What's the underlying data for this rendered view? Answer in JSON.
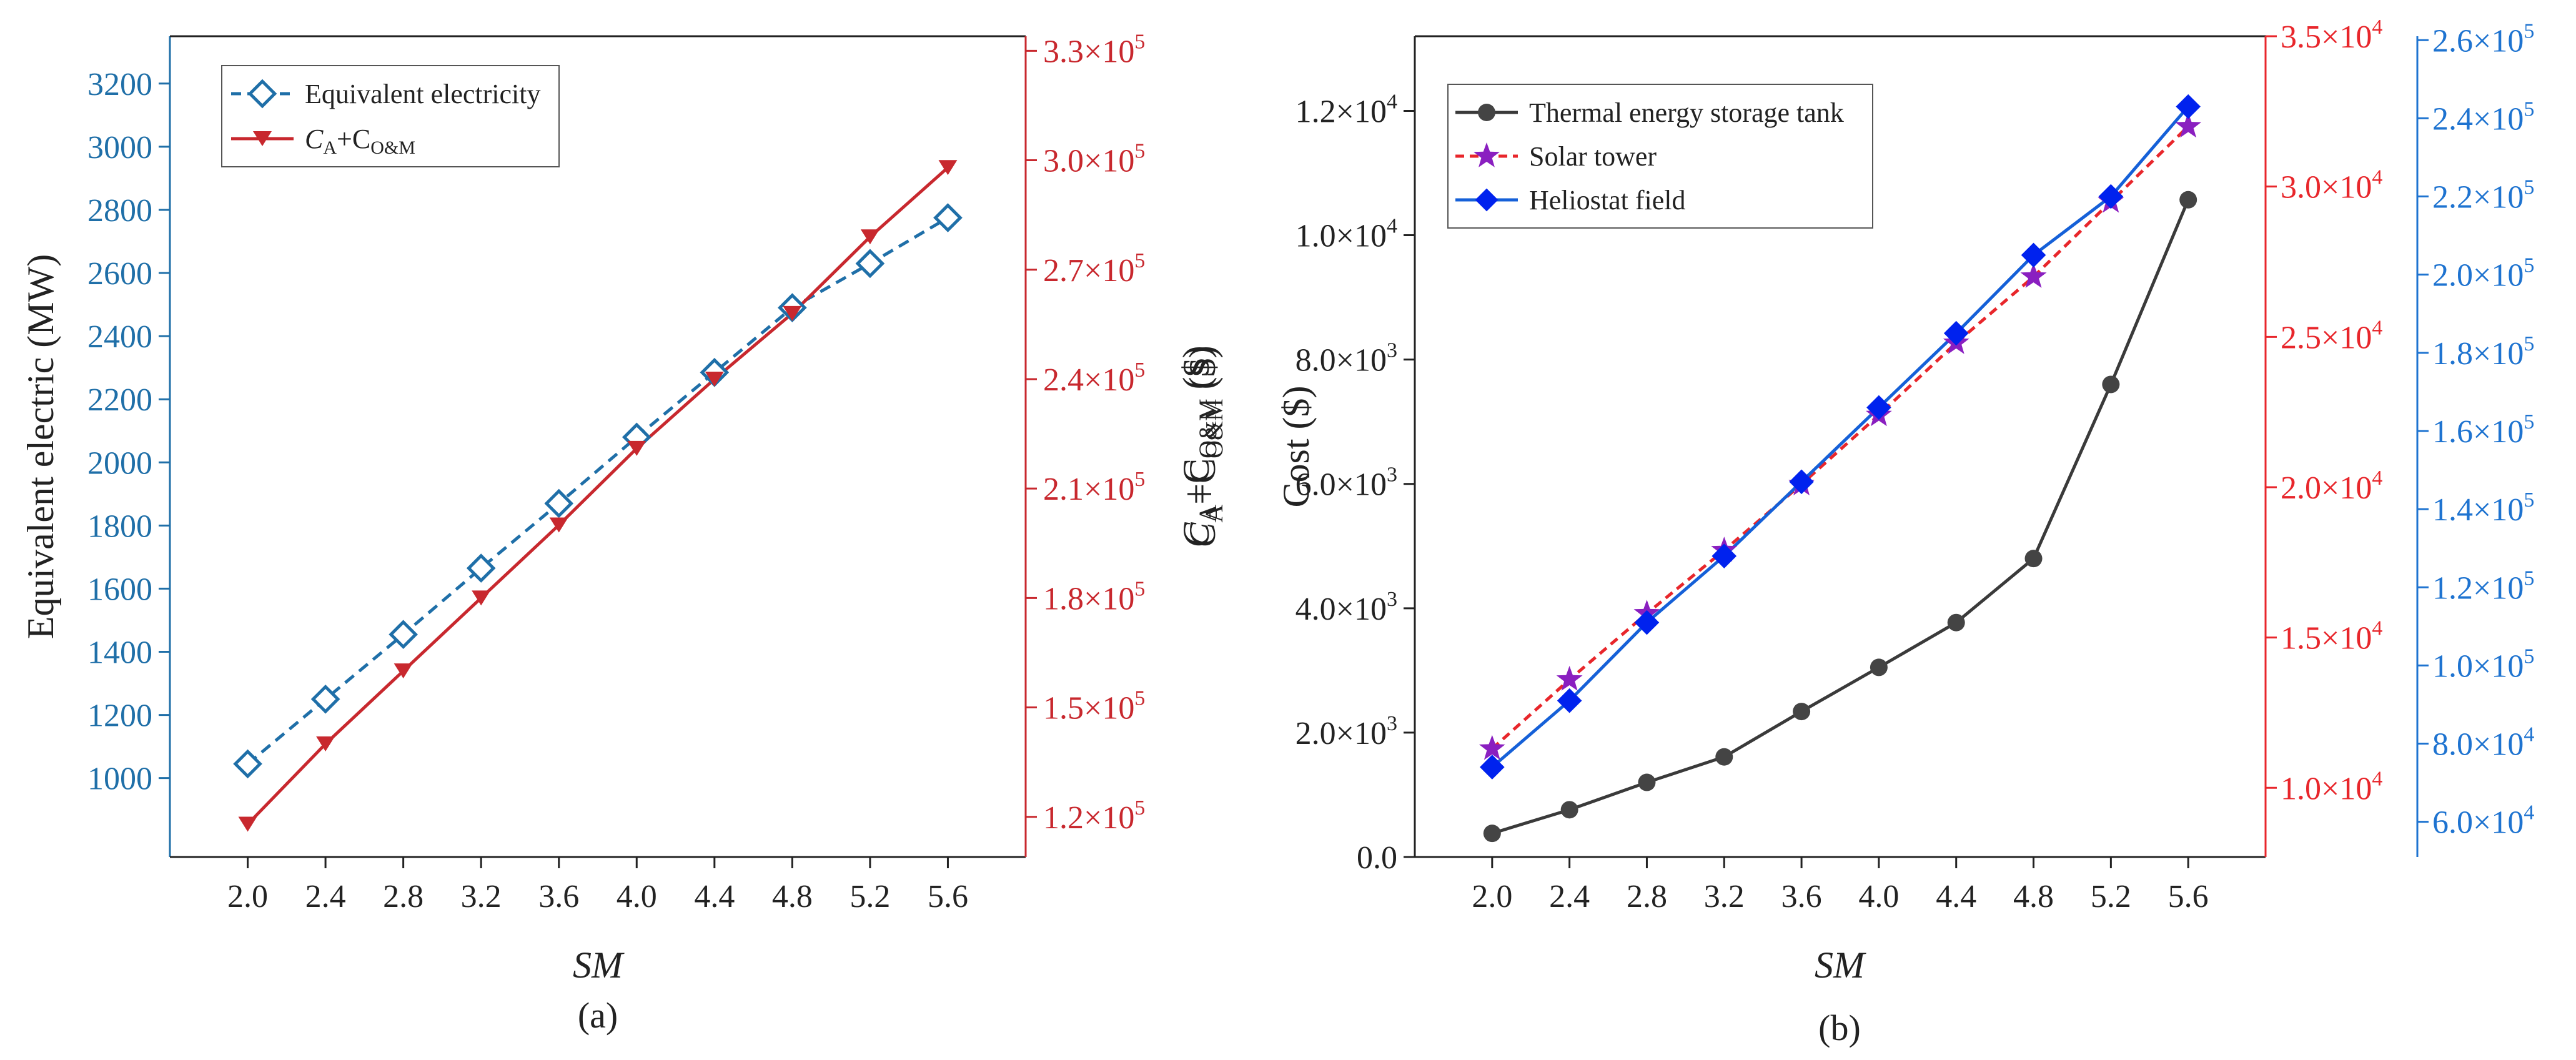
{
  "colors": {
    "blue_axis": "#1f6fa8",
    "red_axis": "#c8282e",
    "red_axis_b": "#e8262b",
    "blue_axis_b": "#1e73d0",
    "black": "#222222",
    "grey_series": "#3a3a3a",
    "purple_series": "#8a1fc0",
    "red_dash_series": "#e8262b",
    "blue_series": "#1560d8",
    "diamond_fill": "#0022ee"
  },
  "chart_data": [
    {
      "id": "a",
      "type": "line",
      "caption": "(a)",
      "xlabel": "SM",
      "x": [
        2.0,
        2.4,
        2.8,
        3.2,
        3.6,
        4.0,
        4.4,
        4.8,
        5.2,
        5.6
      ],
      "x_tick_labels": [
        "2.0",
        "2.4",
        "2.8",
        "3.2",
        "3.6",
        "4.0",
        "4.4",
        "4.8",
        "5.2",
        "5.6"
      ],
      "xlim": [
        1.6,
        6.0
      ],
      "left_axis": {
        "label": "Equivalent electric (MW)",
        "lim": [
          750,
          3350
        ],
        "ticks": [
          1000,
          1200,
          1400,
          1600,
          1800,
          2000,
          2200,
          2400,
          2600,
          2800,
          3000,
          3200
        ],
        "tick_labels": [
          "1000",
          "1200",
          "1400",
          "1600",
          "1800",
          "2000",
          "2200",
          "2400",
          "2600",
          "2800",
          "3000",
          "3200"
        ]
      },
      "right_axis": {
        "label_main": "C",
        "label_sub_a": "A",
        "label_plus": "+C",
        "label_sub_b": "O&M",
        "label_tail": " ($)",
        "lim": [
          109000,
          334000
        ],
        "ticks": [
          120000,
          150000,
          180000,
          210000,
          240000,
          270000,
          300000,
          330000
        ],
        "tick_mantissa": [
          "1.2",
          "1.5",
          "1.8",
          "2.1",
          "2.4",
          "2.7",
          "3.0",
          "3.3"
        ],
        "tick_times": "×10",
        "tick_exp": "5"
      },
      "series": [
        {
          "name": "Equivalent electricity",
          "axis": "left",
          "marker": "open-diamond",
          "line": "dashed",
          "values": [
            1045,
            1250,
            1455,
            1665,
            1870,
            2080,
            2285,
            2490,
            2630,
            2775
          ]
        },
        {
          "name_main": "C",
          "name_sub_a": "A",
          "name_plus": "+C",
          "name_sub_b": "O&M",
          "axis": "right",
          "marker": "down-triangle",
          "line": "solid",
          "values": [
            118000,
            140000,
            160000,
            180000,
            200000,
            221000,
            240000,
            258000,
            279000,
            298000
          ]
        }
      ]
    },
    {
      "id": "b",
      "type": "line",
      "caption": "(b)",
      "xlabel": "SM",
      "x": [
        2.0,
        2.4,
        2.8,
        3.2,
        3.6,
        4.0,
        4.4,
        4.8,
        5.2,
        5.6
      ],
      "x_tick_labels": [
        "2.0",
        "2.4",
        "2.8",
        "3.2",
        "3.6",
        "4.0",
        "4.4",
        "4.8",
        "5.2",
        "5.6"
      ],
      "xlim": [
        1.6,
        6.0
      ],
      "left_axis": {
        "label_main": "C",
        "label_sub_a": "A",
        "label_plus": "+C",
        "label_sub_b": "O&M",
        "label_tail": " ($)",
        "label_second": "Cost ($)",
        "lim": [
          0,
          13200
        ],
        "ticks": [
          0,
          2000,
          4000,
          6000,
          8000,
          10000,
          12000
        ],
        "tick_mantissa": [
          "0.0",
          "2.0",
          "4.0",
          "6.0",
          "8.0",
          "1.0",
          "1.2"
        ],
        "tick_times": "×10",
        "tick_exp": [
          "",
          "3",
          "3",
          "3",
          "3",
          "4",
          "4"
        ]
      },
      "right_axis_1": {
        "lim": [
          7700,
          35000
        ],
        "ticks": [
          10000,
          15000,
          20000,
          25000,
          30000,
          35000
        ],
        "tick_mantissa": [
          "1.0",
          "1.5",
          "2.0",
          "2.5",
          "3.0",
          "3.5"
        ],
        "tick_times": "×10",
        "tick_exp": "4"
      },
      "right_axis_2": {
        "lim": [
          51000,
          261000
        ],
        "ticks": [
          60000,
          80000,
          100000,
          120000,
          140000,
          160000,
          180000,
          200000,
          220000,
          240000,
          260000
        ],
        "tick_mantissa": [
          "6.0",
          "8.0",
          "1.0",
          "1.2",
          "1.4",
          "1.6",
          "1.8",
          "2.0",
          "2.2",
          "2.4",
          "2.6"
        ],
        "tick_times": "×10",
        "tick_exp": [
          "4",
          "4",
          "5",
          "5",
          "5",
          "5",
          "5",
          "5",
          "5",
          "5",
          "5"
        ]
      },
      "series": [
        {
          "name": "Thermal energy storage tank",
          "axis": "left",
          "marker": "sphere",
          "line": "solid",
          "values": [
            380,
            760,
            1200,
            1610,
            2340,
            3050,
            3770,
            4800,
            7600,
            10570
          ]
        },
        {
          "name": "Solar tower",
          "axis": "right1",
          "marker": "star",
          "line": "dashed",
          "values": [
            11300,
            13600,
            15800,
            17900,
            20100,
            22400,
            24800,
            27000,
            29500,
            32000
          ]
        },
        {
          "name": "Heliostat field",
          "axis": "right2",
          "marker": "filled-diamond",
          "line": "solid",
          "values": [
            74000,
            91000,
            111000,
            128000,
            147000,
            166000,
            185000,
            205000,
            220000,
            243000
          ]
        }
      ]
    }
  ]
}
